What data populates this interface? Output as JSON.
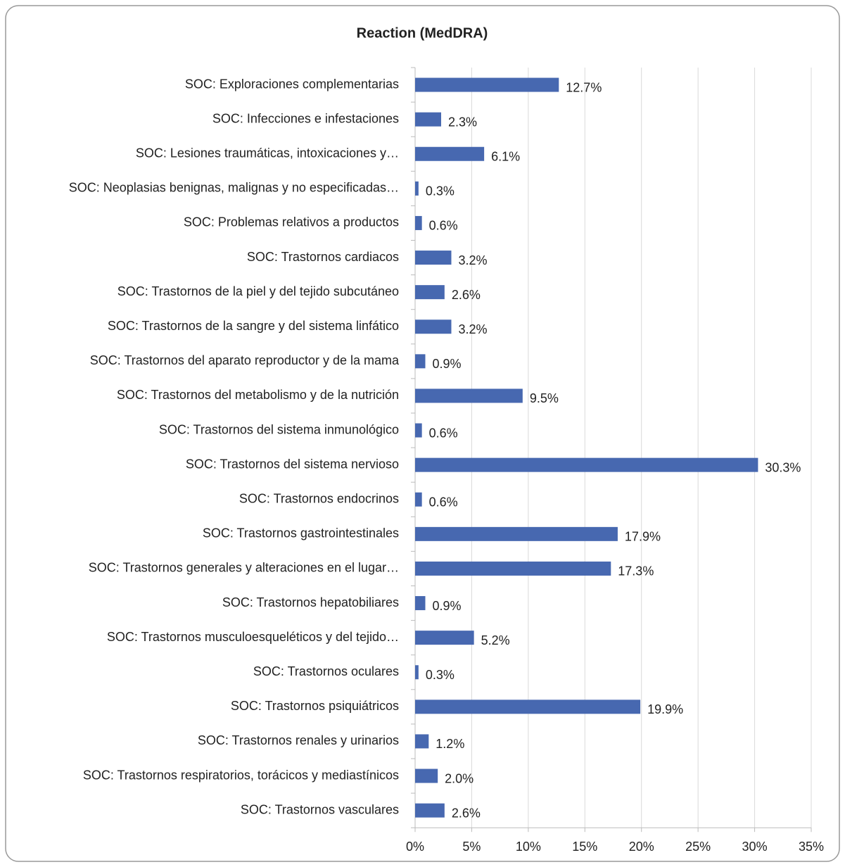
{
  "chart_data": {
    "type": "bar",
    "orientation": "horizontal",
    "title": "Reaction (MedDRA)",
    "categories": [
      "SOC: Exploraciones complementarias",
      "SOC: Infecciones e infestaciones",
      "SOC: Lesiones traumáticas, intoxicaciones y…",
      "SOC: Neoplasias benignas, malignas y no especificadas…",
      "SOC: Problemas relativos a productos",
      "SOC: Trastornos cardiacos",
      "SOC: Trastornos de la piel y del tejido subcutáneo",
      "SOC: Trastornos de la sangre y del sistema linfático",
      "SOC: Trastornos del aparato reproductor y de la mama",
      "SOC: Trastornos del metabolismo y de la nutrición",
      "SOC: Trastornos del sistema inmunológico",
      "SOC: Trastornos del sistema nervioso",
      "SOC: Trastornos endocrinos",
      "SOC: Trastornos gastrointestinales",
      "SOC: Trastornos generales y alteraciones en el lugar…",
      "SOC: Trastornos hepatobiliares",
      "SOC: Trastornos musculoesqueléticos y del tejido…",
      "SOC: Trastornos oculares",
      "SOC: Trastornos psiquiátricos",
      "SOC: Trastornos renales y urinarios",
      "SOC: Trastornos respiratorios, torácicos y mediastínicos",
      "SOC: Trastornos vasculares"
    ],
    "values": [
      12.7,
      2.3,
      6.1,
      0.3,
      0.6,
      3.2,
      2.6,
      3.2,
      0.9,
      9.5,
      0.6,
      30.3,
      0.6,
      17.9,
      17.3,
      0.9,
      5.2,
      0.3,
      19.9,
      1.2,
      2.0,
      2.6
    ],
    "value_labels": [
      "12.7%",
      "2.3%",
      "6.1%",
      "0.3%",
      "0.6%",
      "3.2%",
      "2.6%",
      "3.2%",
      "0.9%",
      "9.5%",
      "0.6%",
      "30.3%",
      "0.6%",
      "17.9%",
      "17.3%",
      "0.9%",
      "5.2%",
      "0.3%",
      "19.9%",
      "1.2%",
      "2.0%",
      "2.6%"
    ],
    "color": "#4768b0",
    "xlim": [
      0,
      35
    ],
    "xticks": [
      {
        "value": 0,
        "label": "0%"
      },
      {
        "value": 5,
        "label": "5%"
      },
      {
        "value": 10,
        "label": "10%"
      },
      {
        "value": 15,
        "label": "15%"
      },
      {
        "value": 20,
        "label": "20%"
      },
      {
        "value": 25,
        "label": "25%"
      },
      {
        "value": 30,
        "label": "30%"
      },
      {
        "value": 35,
        "label": "35%"
      }
    ],
    "grid": true
  }
}
